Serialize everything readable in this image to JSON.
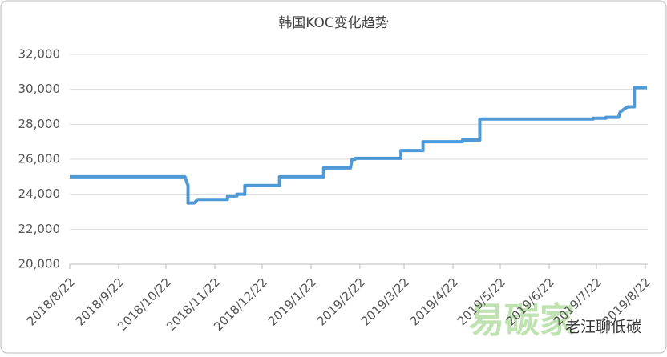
{
  "chart_data": {
    "type": "line",
    "title": "韩国KOC变化趋势",
    "x": [
      "2018/8/22",
      "2018/11/3",
      "2018/11/5",
      "2018/11/5",
      "2018/11/9",
      "2018/11/11",
      "2018/11/30",
      "2018/11/30",
      "2018/12/6",
      "2018/12/6",
      "2018/12/11",
      "2018/12/11",
      "2019/1/2",
      "2019/1/2",
      "2019/1/30",
      "2019/1/30",
      "2019/2/16",
      "2019/2/17",
      "2019/2/19",
      "2019/2/19",
      "2019/3/20",
      "2019/3/20",
      "2019/4/3",
      "2019/4/3",
      "2019/4/28",
      "2019/4/28",
      "2019/5/9",
      "2019/5/9",
      "2019/7/20",
      "2019/7/20",
      "2019/7/28",
      "2019/7/28",
      "2019/8/5",
      "2019/8/6",
      "2019/8/9",
      "2019/8/11",
      "2019/8/15",
      "2019/8/15",
      "2019/8/23"
    ],
    "series": [
      {
        "color": "#4f9ad6",
        "values": [
          25000,
          25000,
          24500,
          23500,
          23500,
          23700,
          23700,
          23900,
          23900,
          24000,
          24000,
          24500,
          24500,
          25000,
          25000,
          25500,
          25500,
          26000,
          26000,
          26050,
          26050,
          26500,
          26500,
          27000,
          27000,
          27100,
          27100,
          28300,
          28300,
          28350,
          28350,
          28400,
          28400,
          28700,
          28900,
          29000,
          29000,
          30100,
          30100
        ]
      }
    ],
    "xlim": [
      "2018/8/22",
      "2019/8/22"
    ],
    "xticks": [
      "2018/8/22",
      "2018/9/22",
      "2018/10/22",
      "2018/11/22",
      "2018/12/22",
      "2019/1/22",
      "2019/2/22",
      "2019/3/22",
      "2019/4/22",
      "2019/5/22",
      "2019/6/22",
      "2019/7/22",
      "2019/8/22"
    ],
    "ylim": [
      20000,
      32000
    ],
    "yticks": [
      {
        "value": 20000,
        "label": "20,000"
      },
      {
        "value": 22000,
        "label": "22,000"
      },
      {
        "value": 24000,
        "label": "24,000"
      },
      {
        "value": 26000,
        "label": "26,000"
      },
      {
        "value": 28000,
        "label": "28,000"
      },
      {
        "value": 30000,
        "label": "30,000"
      },
      {
        "value": 32000,
        "label": "32,000"
      }
    ],
    "grid": true
  },
  "watermark": [
    "易碳家",
    "老汪聊低碳"
  ]
}
